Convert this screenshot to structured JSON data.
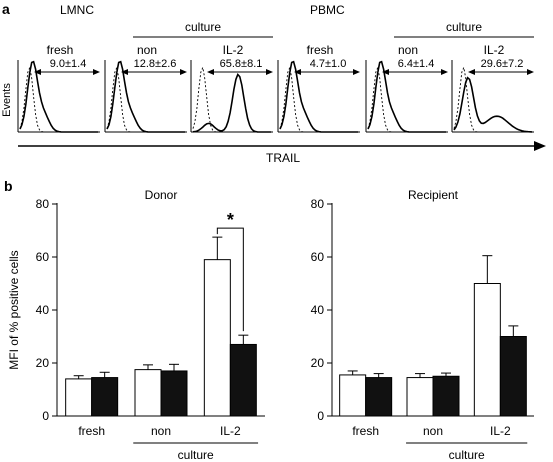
{
  "panel_a": {
    "letter": "a",
    "y_label": "Events",
    "x_label": "TRAIL",
    "groups": [
      {
        "title": "LMNC",
        "culture_label": "culture",
        "histograms": [
          {
            "condition": "fresh",
            "stat": "9.0±1.4"
          },
          {
            "condition": "non",
            "stat": "12.8±2.6"
          },
          {
            "condition": "IL-2",
            "stat": "65.8±8.1"
          }
        ]
      },
      {
        "title": "PBMC",
        "culture_label": "culture",
        "histograms": [
          {
            "condition": "fresh",
            "stat": "4.7±1.0"
          },
          {
            "condition": "non",
            "stat": "6.4±1.4"
          },
          {
            "condition": "IL-2",
            "stat": "29.6±7.2"
          }
        ]
      }
    ]
  },
  "panel_b": {
    "letter": "b"
  },
  "chart_data": [
    {
      "type": "bar",
      "title": "Donor",
      "ylabel": "MFI  of  % positive cells",
      "ylim": [
        0,
        80
      ],
      "yticks": [
        0,
        20,
        40,
        60,
        80
      ],
      "categories": [
        "fresh",
        "non",
        "IL-2"
      ],
      "group_label": "culture",
      "series": [
        {
          "fill": "#ffffff",
          "values": [
            14,
            17.5,
            59
          ],
          "errors": [
            1.2,
            1.8,
            8.5
          ]
        },
        {
          "fill": "#111111",
          "values": [
            14.5,
            17,
            27
          ],
          "errors": [
            2.0,
            2.5,
            3.5
          ]
        }
      ],
      "annotations": [
        {
          "text": "*",
          "category": "IL-2"
        }
      ]
    },
    {
      "type": "bar",
      "title": "Recipient",
      "ylim": [
        0,
        80
      ],
      "yticks": [
        0,
        20,
        40,
        60,
        80
      ],
      "categories": [
        "fresh",
        "non",
        "IL-2"
      ],
      "group_label": "culture",
      "series": [
        {
          "fill": "#ffffff",
          "values": [
            15.5,
            14.5,
            50
          ],
          "errors": [
            1.5,
            1.5,
            10.5
          ]
        },
        {
          "fill": "#111111",
          "values": [
            14.5,
            15,
            30
          ],
          "errors": [
            1.5,
            1.2,
            4
          ]
        }
      ],
      "annotations": []
    }
  ]
}
